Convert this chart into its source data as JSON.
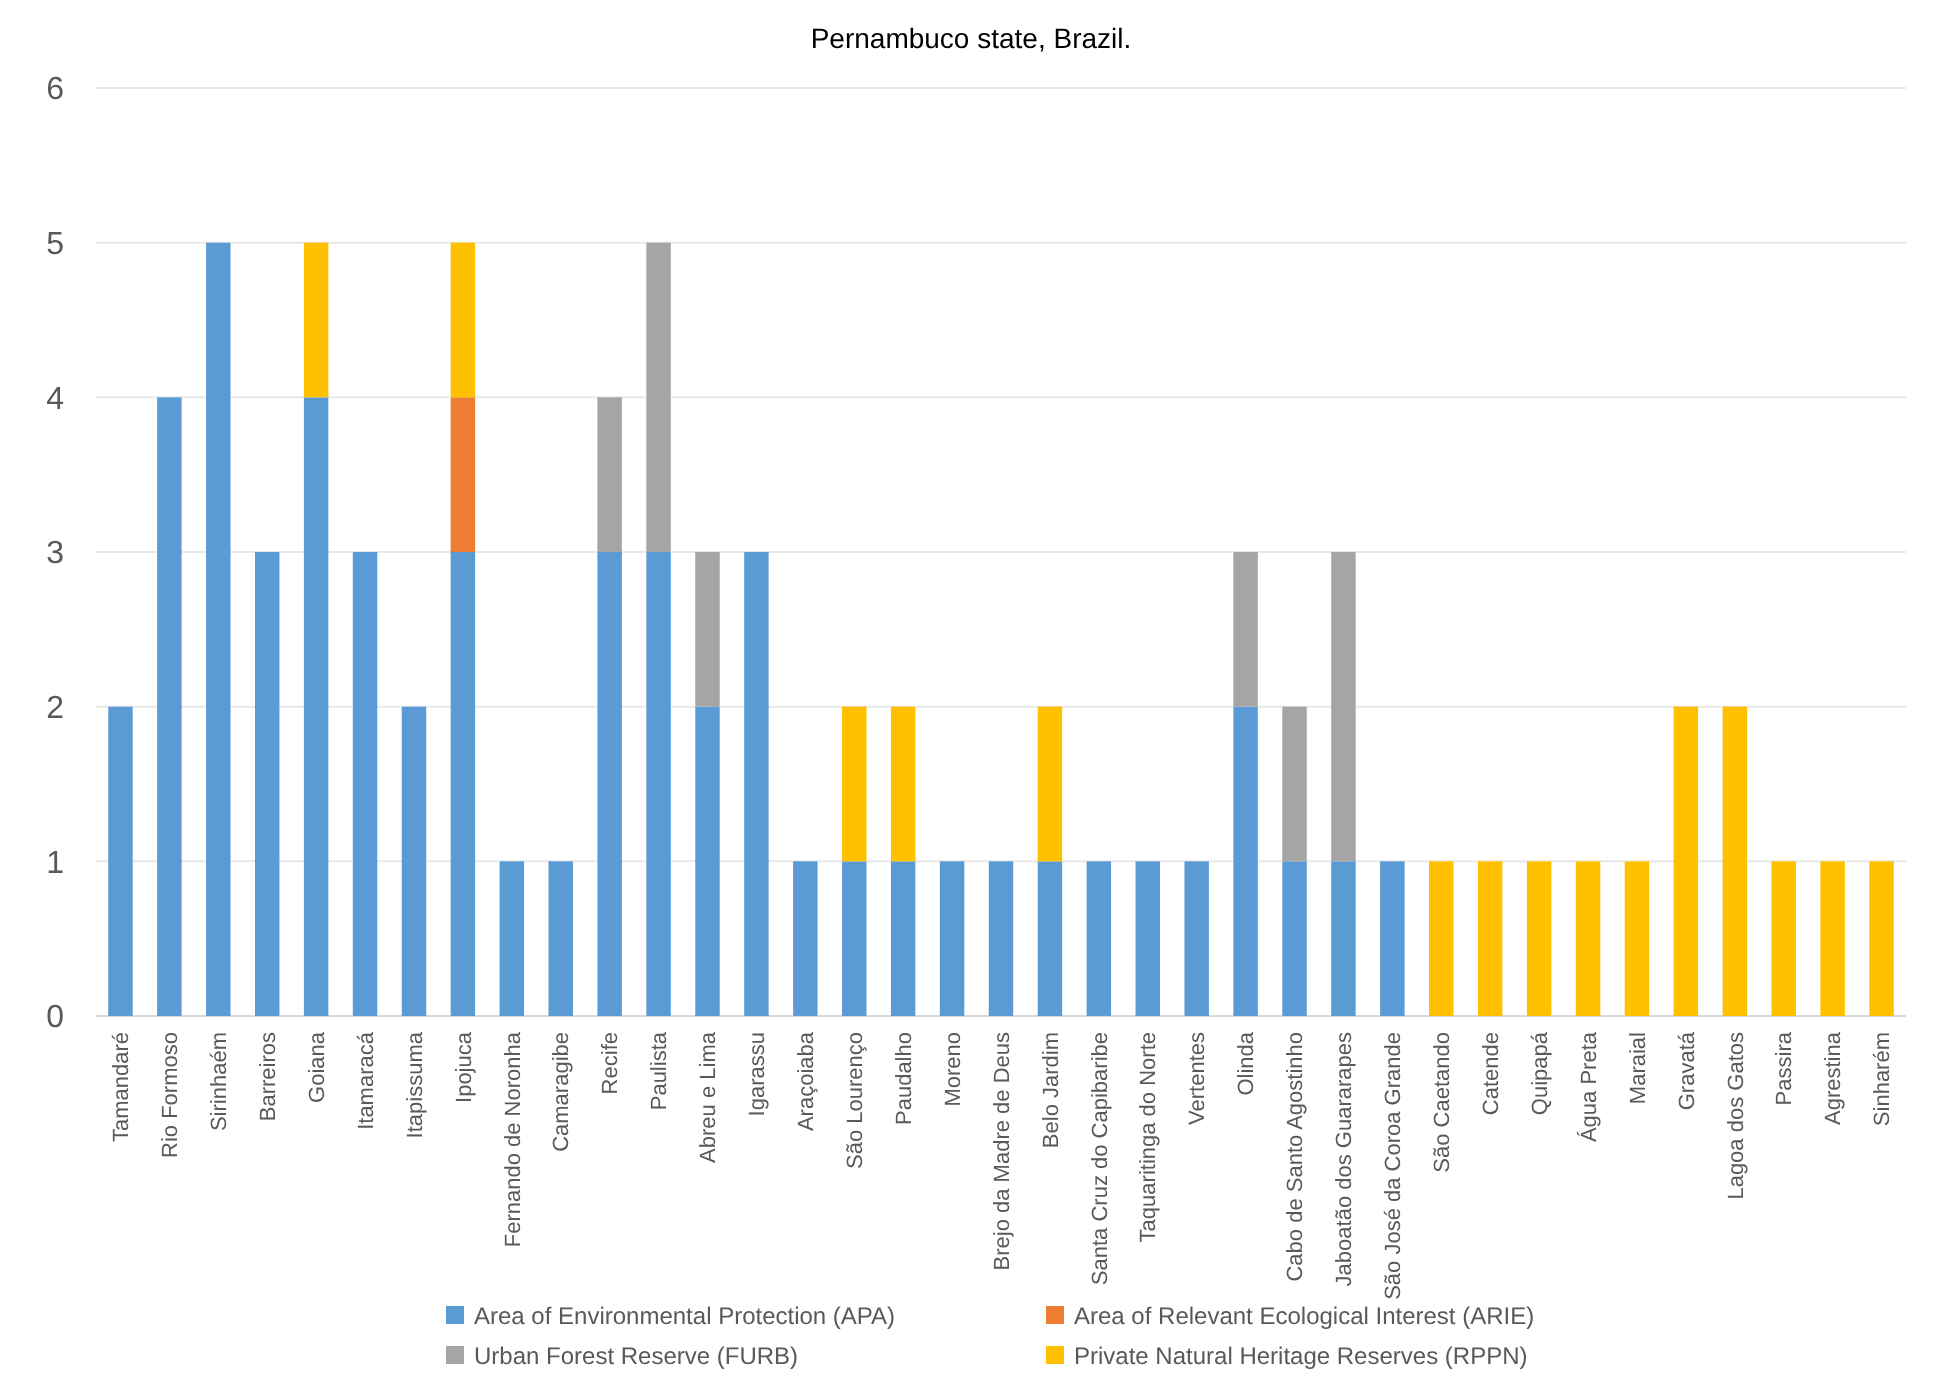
{
  "chart_data": {
    "type": "bar",
    "stacked": true,
    "title": "Pernambuco state, Brazil.",
    "categories": [
      "Tamandaré",
      "Rio Formoso",
      "Sirinhaém",
      "Barreiros",
      "Goiana",
      "Itamaracá",
      "Itapissuma",
      "Ipojuca",
      "Fernando de Noronha",
      "Camaragibe",
      "Recife",
      "Paulista",
      "Abreu e Lima",
      "Igarassu",
      "Araçoiaba",
      "São Lourenço",
      "Paudalho",
      "Moreno",
      "Brejo da Madre de Deus",
      "Belo Jardim",
      "Santa Cruz do Capibaribe",
      "Taquaritinga do Norte",
      "Vertentes",
      "Olinda",
      "Cabo de Santo Agostinho",
      "Jaboatão dos Guararapes",
      "São José da Coroa Grande",
      "São Caetando",
      "Catende",
      "Quipapá",
      "Água Preta",
      "Maraial",
      "Gravatá",
      "Lagoa dos Gatos",
      "Passira",
      "Agrestina",
      "Sinharém"
    ],
    "series": [
      {
        "name": "Area of Environmental Protection (APA)",
        "color": "#5b9bd5",
        "values": [
          2,
          4,
          5,
          3,
          4,
          3,
          2,
          3,
          1,
          1,
          3,
          3,
          2,
          3,
          1,
          1,
          1,
          1,
          1,
          1,
          1,
          1,
          1,
          2,
          1,
          1,
          1,
          0,
          0,
          0,
          0,
          0,
          0,
          0,
          0,
          0,
          0
        ]
      },
      {
        "name": "Area of Relevant Ecological Interest (ARIE)",
        "color": "#ed7d31",
        "values": [
          0,
          0,
          0,
          0,
          0,
          0,
          0,
          1,
          0,
          0,
          0,
          0,
          0,
          0,
          0,
          0,
          0,
          0,
          0,
          0,
          0,
          0,
          0,
          0,
          0,
          0,
          0,
          0,
          0,
          0,
          0,
          0,
          0,
          0,
          0,
          0,
          0
        ]
      },
      {
        "name": "Urban Forest Reserve (FURB)",
        "color": "#a5a5a5",
        "values": [
          0,
          0,
          0,
          0,
          0,
          0,
          0,
          0,
          0,
          0,
          1,
          2,
          1,
          0,
          0,
          0,
          0,
          0,
          0,
          0,
          0,
          0,
          0,
          1,
          1,
          2,
          0,
          0,
          0,
          0,
          0,
          0,
          0,
          0,
          0,
          0,
          0
        ]
      },
      {
        "name": "Private Natural Heritage Reserves (RPPN)",
        "color": "#ffc000",
        "values": [
          0,
          0,
          0,
          0,
          1,
          0,
          0,
          1,
          0,
          0,
          0,
          0,
          0,
          0,
          0,
          1,
          1,
          0,
          0,
          1,
          0,
          0,
          0,
          0,
          0,
          0,
          0,
          1,
          1,
          1,
          1,
          1,
          2,
          2,
          1,
          1,
          1
        ]
      }
    ],
    "ylim": [
      0,
      6
    ],
    "yticks": [
      0,
      1,
      2,
      3,
      4,
      5,
      6
    ],
    "grid": "y",
    "legend": "bottom"
  }
}
